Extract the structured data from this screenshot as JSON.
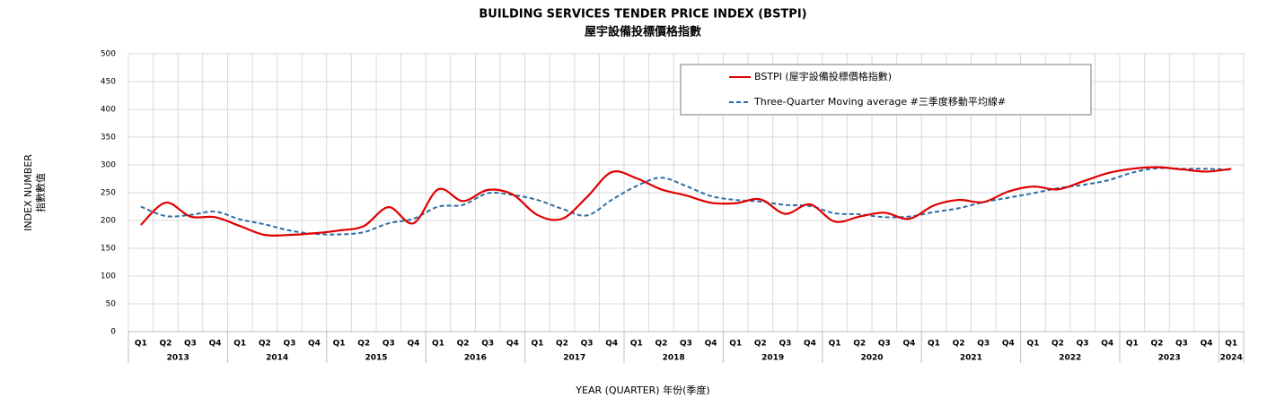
{
  "chart_data": {
    "type": "line",
    "title": "BUILDING SERVICES TENDER PRICE INDEX (BSTPI)",
    "subtitle": "屋宇設備投標價格指數",
    "y_label": [
      "INDEX NUMBER",
      "指數數值"
    ],
    "x_label": "YEAR (QUARTER) 年份(季度)",
    "categories": [
      "Q1",
      "Q2",
      "Q3",
      "Q4",
      "Q1",
      "Q2",
      "Q3",
      "Q4",
      "Q1",
      "Q2",
      "Q3",
      "Q4",
      "Q1",
      "Q2",
      "Q3",
      "Q4",
      "Q1",
      "Q2",
      "Q3",
      "Q4",
      "Q1",
      "Q2",
      "Q3",
      "Q4",
      "Q1",
      "Q2",
      "Q3",
      "Q4",
      "Q1",
      "Q2",
      "Q3",
      "Q4",
      "Q1",
      "Q2",
      "Q3",
      "Q4",
      "Q1",
      "Q2",
      "Q3",
      "Q4",
      "Q1",
      "Q2",
      "Q3",
      "Q4",
      "Q1"
    ],
    "years": [
      "2013",
      "2014",
      "2015",
      "2016",
      "2017",
      "2018",
      "2019",
      "2020",
      "2021",
      "2022",
      "2023",
      "2024"
    ],
    "series": [
      {
        "name": "BSTPI (屋宇設備投標價格指數)",
        "color": "#e00000",
        "dash": false,
        "values": [
          192,
          232,
          207,
          206,
          190,
          174,
          174,
          177,
          182,
          190,
          224,
          195,
          256,
          235,
          255,
          247,
          210,
          203,
          242,
          287,
          276,
          256,
          245,
          232,
          231,
          238,
          212,
          229,
          198,
          207,
          214,
          203,
          227,
          237,
          233,
          252,
          261,
          256,
          270,
          285,
          293,
          296,
          292,
          288,
          293
        ]
      },
      {
        "name": "Three-Quarter Moving average #三季度移動平均線#",
        "color": "#2e6da4",
        "dash": true,
        "values": [
          225,
          208,
          210,
          216,
          202,
          193,
          182,
          176,
          175,
          179,
          195,
          203,
          225,
          228,
          249,
          246,
          237,
          221,
          209,
          237,
          262,
          277,
          262,
          244,
          237,
          234,
          228,
          226,
          213,
          211,
          206,
          207,
          215,
          222,
          233,
          241,
          249,
          258,
          264,
          272,
          286,
          294,
          293,
          293,
          291
        ]
      }
    ],
    "ylim": [
      0,
      500
    ],
    "yticks": [
      0,
      50,
      100,
      150,
      200,
      250,
      300,
      350,
      400,
      450,
      500
    ],
    "grid": true
  }
}
